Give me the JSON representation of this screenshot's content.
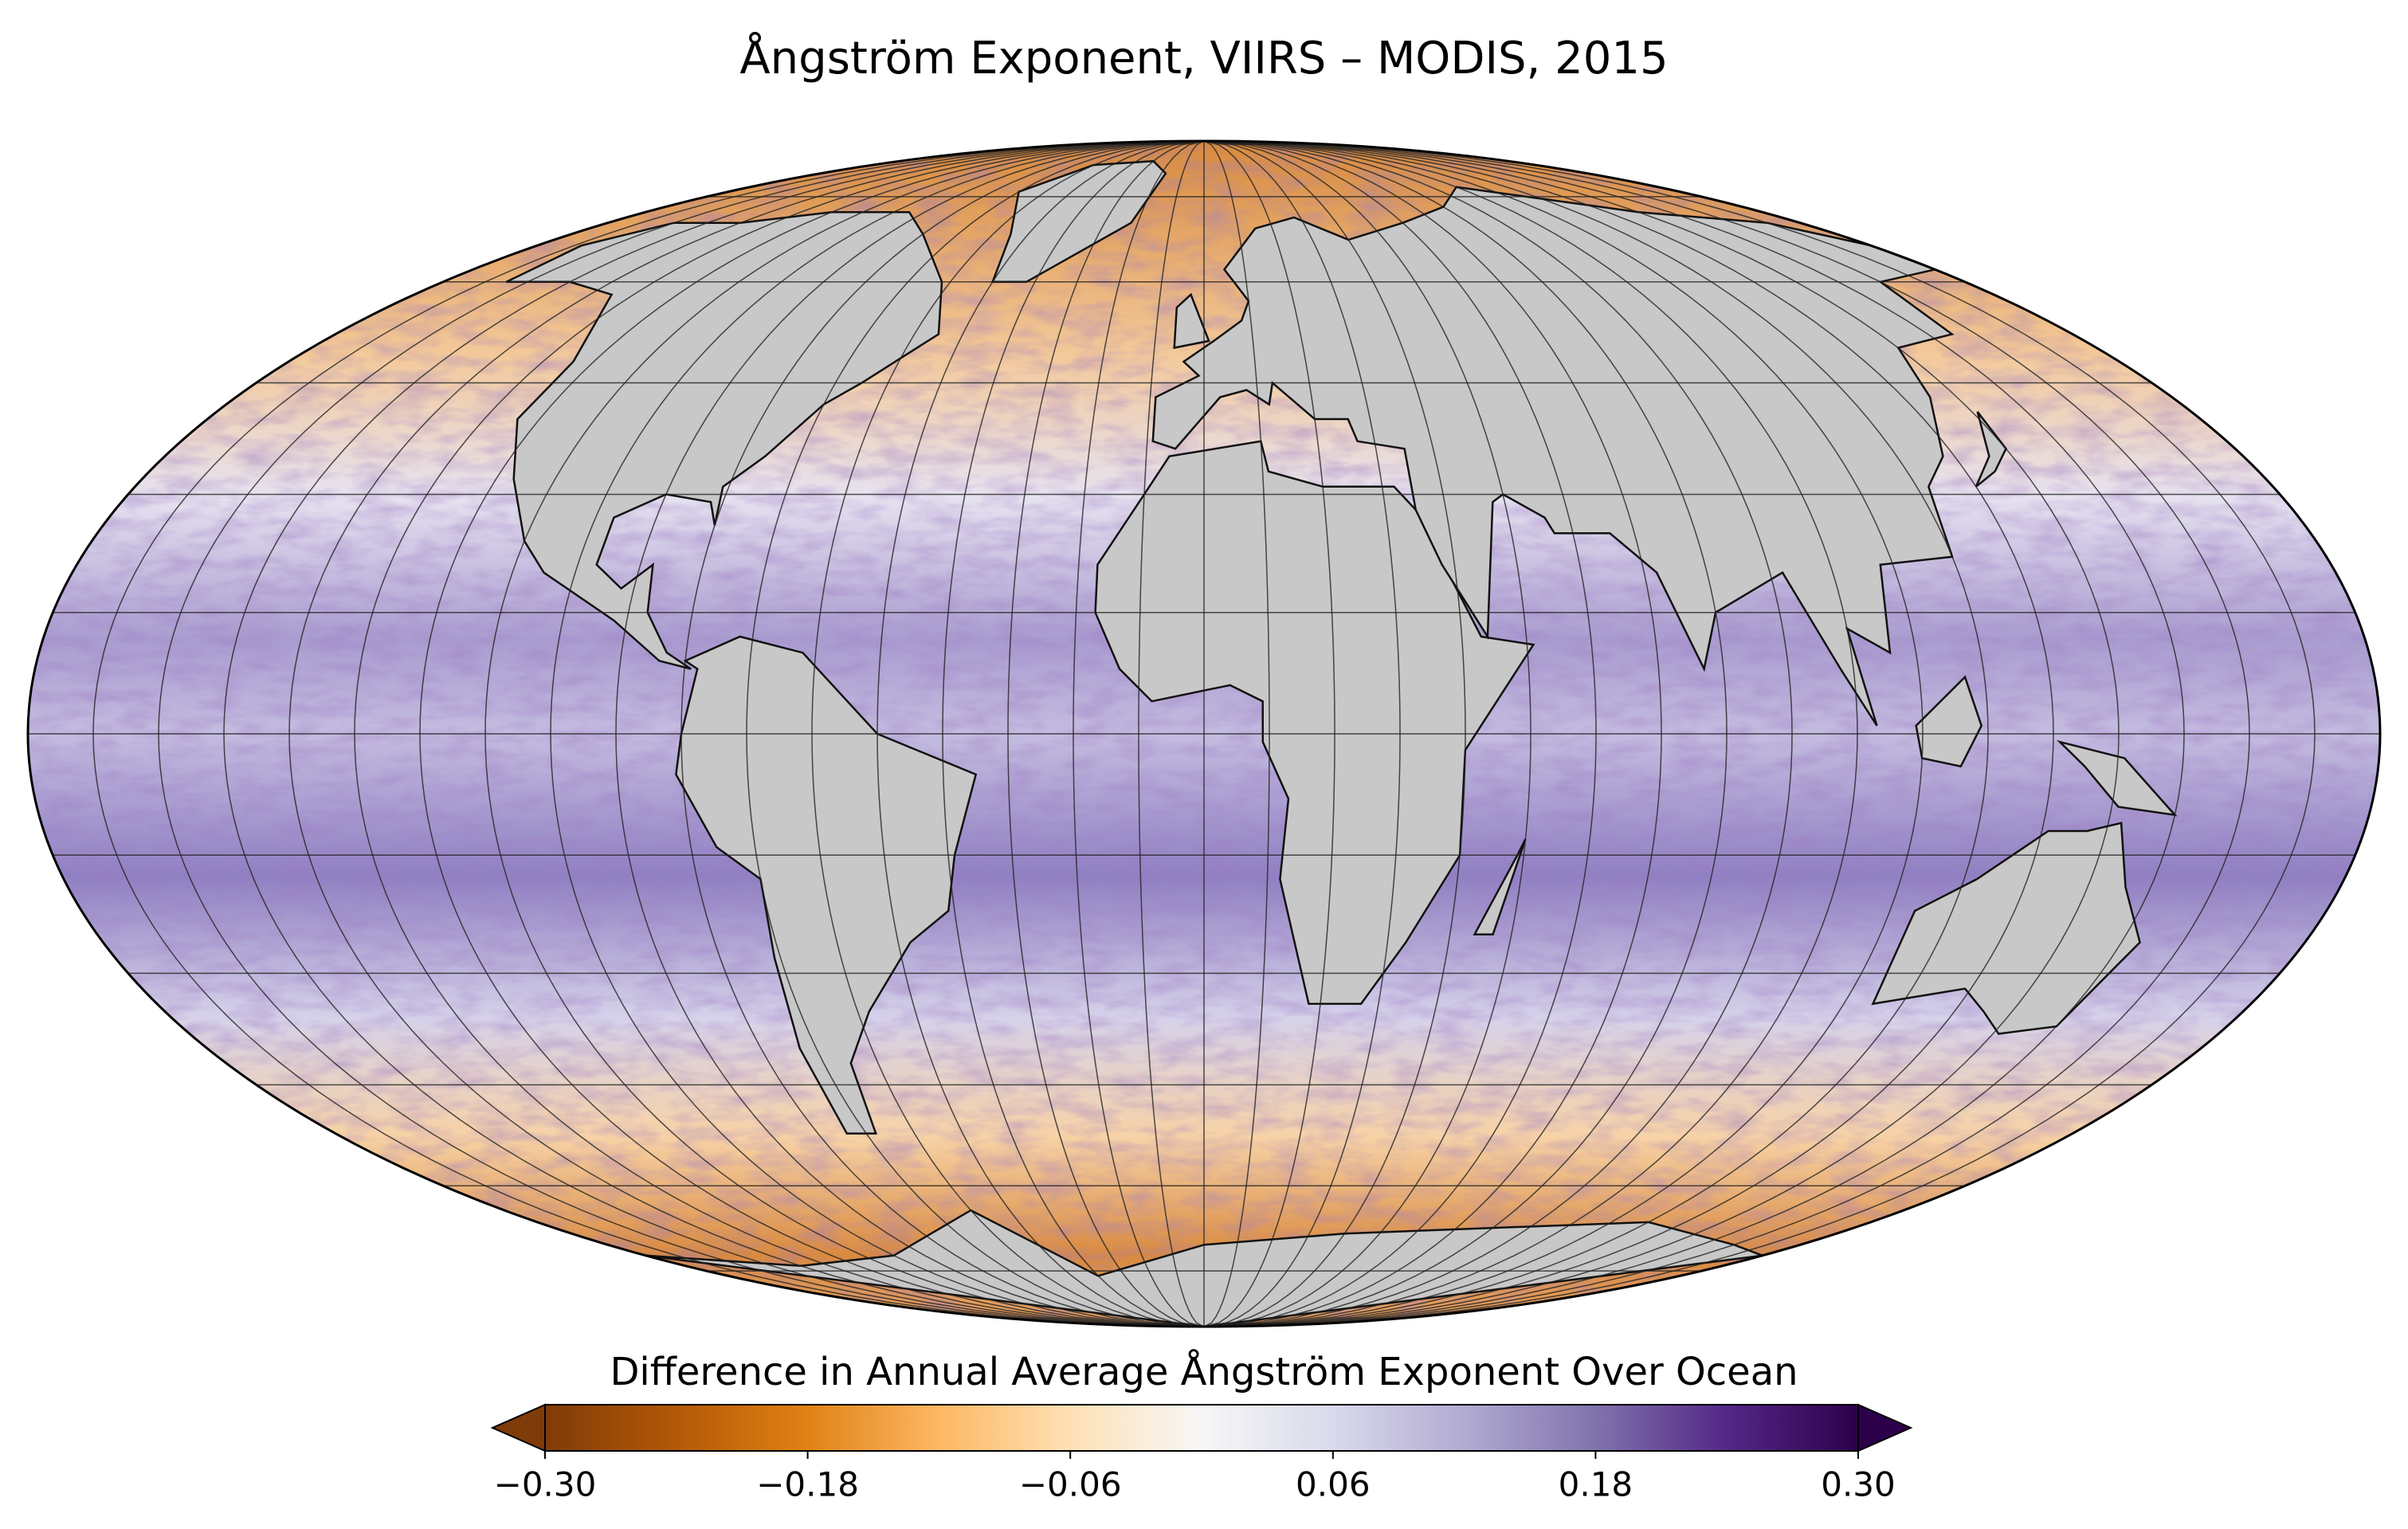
{
  "title": "Ångström Exponent, VIIRS – MODIS, 2015",
  "colorbar": {
    "label": "Difference in Annual Average Ångström Exponent Over Ocean",
    "lim": [
      -0.3,
      0.3
    ],
    "colors": [
      "#7f3b08",
      "#b35806",
      "#e08214",
      "#fdb863",
      "#fee0b6",
      "#f7f7f7",
      "#d8daeb",
      "#b2abd2",
      "#8073ac",
      "#542788",
      "#2d004b"
    ],
    "ticks": [
      {
        "value": -0.3,
        "label": "−0.30"
      },
      {
        "value": -0.18,
        "label": "−0.18"
      },
      {
        "value": -0.06,
        "label": "−0.06"
      },
      0.06,
      0.18,
      {
        "value": 0.3,
        "label": "0.30"
      }
    ]
  }
}
